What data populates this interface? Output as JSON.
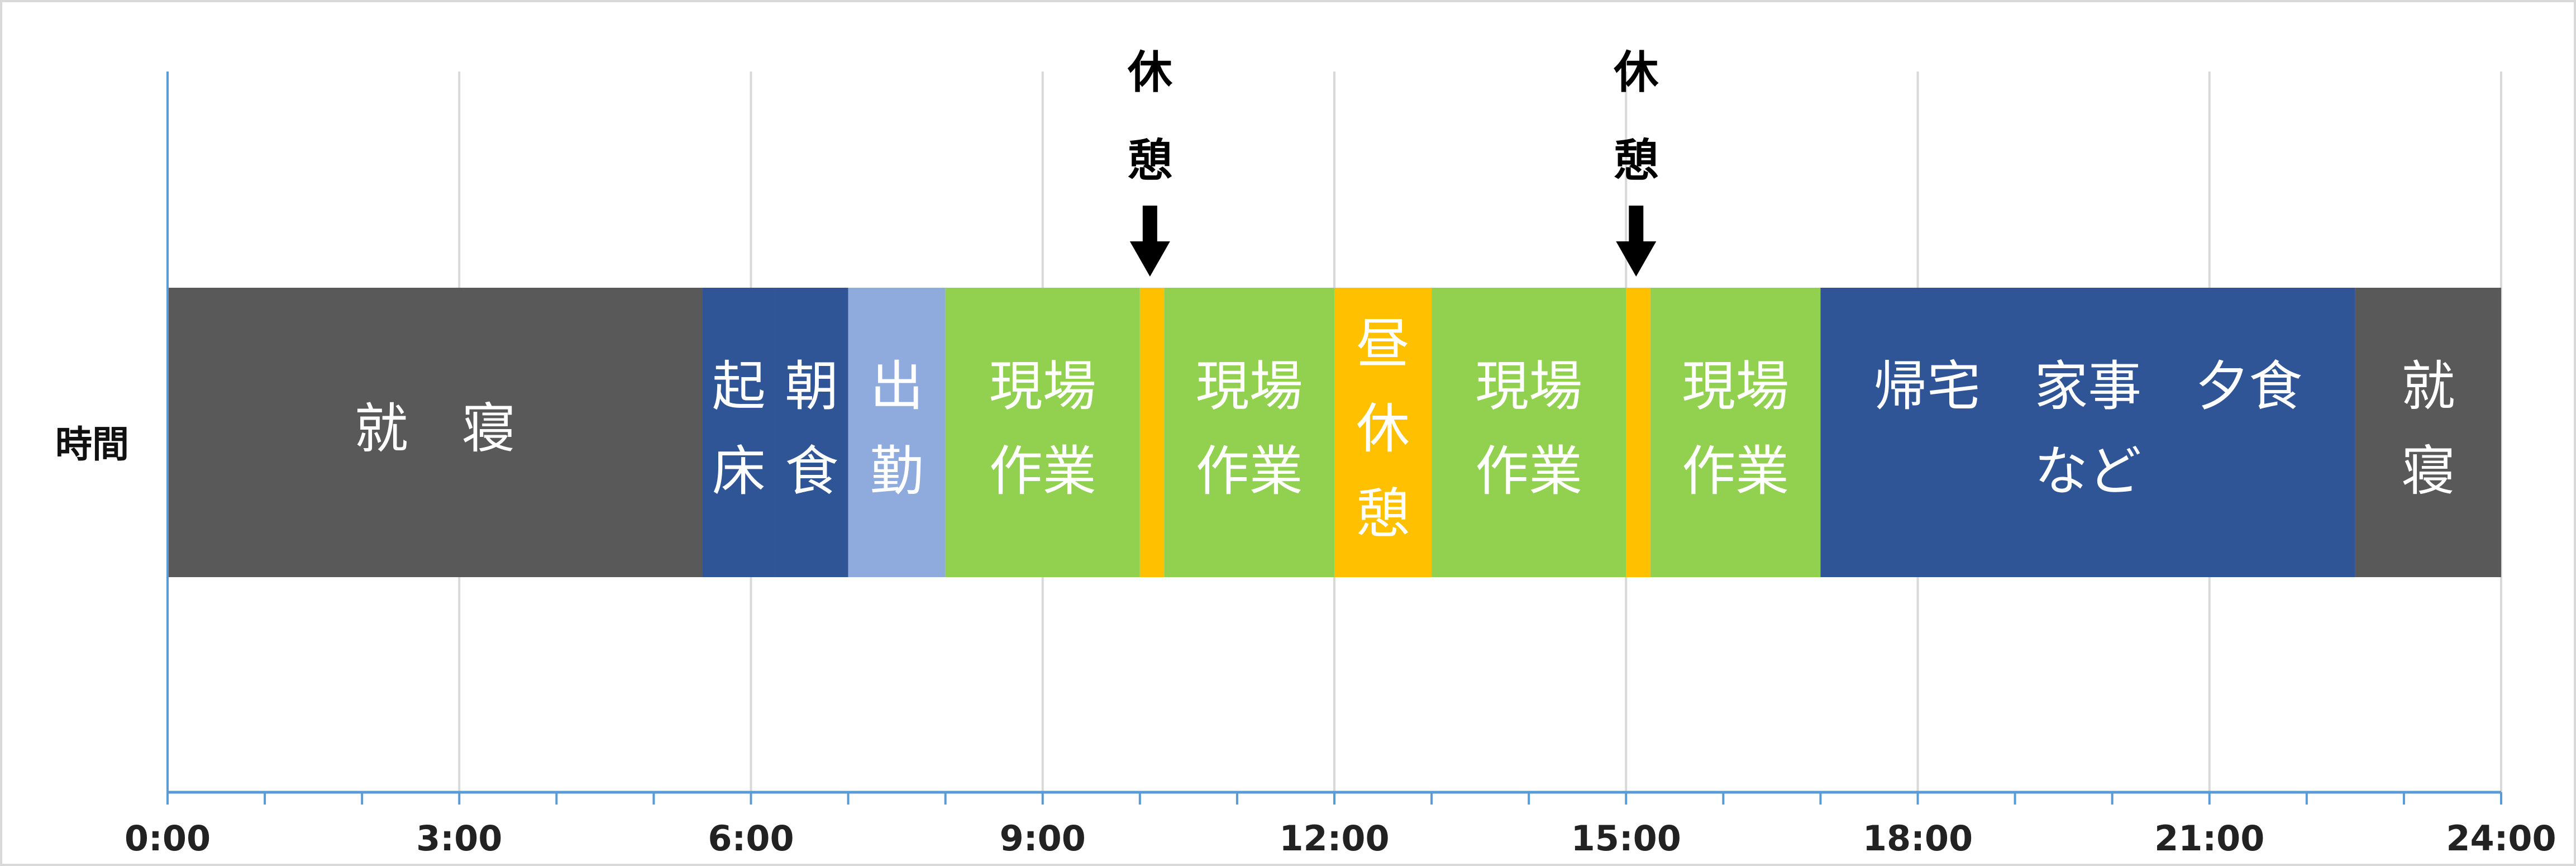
{
  "chart_data": {
    "type": "bar",
    "orientation": "horizontal",
    "stacked": true,
    "row_label": "時間",
    "xlim": [
      0,
      24
    ],
    "x_tick_values": [
      0,
      3,
      6,
      9,
      12,
      15,
      18,
      21,
      24
    ],
    "x_tick_labels": [
      "0:00",
      "3:00",
      "6:00",
      "9:00",
      "12:00",
      "15:00",
      "18:00",
      "21:00",
      "24:00"
    ],
    "minor_tick_step": 1,
    "grid": true,
    "segments": [
      {
        "label": "就　寝",
        "start": 0,
        "end": 5.5,
        "color": "#595959",
        "text_color": "#ffffff",
        "lines": [
          "就　寝"
        ]
      },
      {
        "label": "起床",
        "start": 5.5,
        "end": 6.25,
        "color": "#2f5597",
        "text_color": "#ffffff",
        "lines": [
          "起",
          "床"
        ]
      },
      {
        "label": "朝食",
        "start": 6.25,
        "end": 7.0,
        "color": "#2f5597",
        "text_color": "#ffffff",
        "lines": [
          "朝",
          "食"
        ]
      },
      {
        "label": "出勤",
        "start": 7.0,
        "end": 8.0,
        "color": "#8faadc",
        "text_color": "#ffffff",
        "lines": [
          "出",
          "勤"
        ]
      },
      {
        "label": "現場作業",
        "start": 8.0,
        "end": 10.0,
        "color": "#92d050",
        "text_color": "#ffffff",
        "lines": [
          "現場",
          "作業"
        ]
      },
      {
        "label": "休憩",
        "start": 10.0,
        "end": 10.25,
        "color": "#ffc000",
        "text_color": "#ffffff",
        "lines": []
      },
      {
        "label": "現場作業",
        "start": 10.25,
        "end": 12.0,
        "color": "#92d050",
        "text_color": "#ffffff",
        "lines": [
          "現場",
          "作業"
        ]
      },
      {
        "label": "昼休憩",
        "start": 12.0,
        "end": 13.0,
        "color": "#ffc000",
        "text_color": "#ffffff",
        "lines": [
          "昼",
          "休",
          "憩"
        ]
      },
      {
        "label": "現場作業",
        "start": 13.0,
        "end": 15.0,
        "color": "#92d050",
        "text_color": "#ffffff",
        "lines": [
          "現場",
          "作業"
        ]
      },
      {
        "label": "休憩",
        "start": 15.0,
        "end": 15.25,
        "color": "#ffc000",
        "text_color": "#ffffff",
        "lines": []
      },
      {
        "label": "現場作業",
        "start": 15.25,
        "end": 17.0,
        "color": "#92d050",
        "text_color": "#ffffff",
        "lines": [
          "現場",
          "作業"
        ]
      },
      {
        "label": "帰宅　家事　夕食　など",
        "start": 17.0,
        "end": 22.5,
        "color": "#2f5597",
        "text_color": "#ffffff",
        "lines": [
          "帰宅　家事　夕食",
          "など"
        ]
      },
      {
        "label": "就寝",
        "start": 22.5,
        "end": 24.0,
        "color": "#595959",
        "text_color": "#ffffff",
        "lines": [
          "就",
          "寝"
        ]
      }
    ],
    "annotations": [
      {
        "text_lines": [
          "休",
          "憩"
        ],
        "x": 10.0,
        "arrow": "down"
      },
      {
        "text_lines": [
          "休",
          "憩"
        ],
        "x": 15.0,
        "arrow": "down"
      }
    ],
    "colors": {
      "grid": "#d9d9d9",
      "axis": "#5b9bd5",
      "border": "#d9d9d9"
    }
  }
}
